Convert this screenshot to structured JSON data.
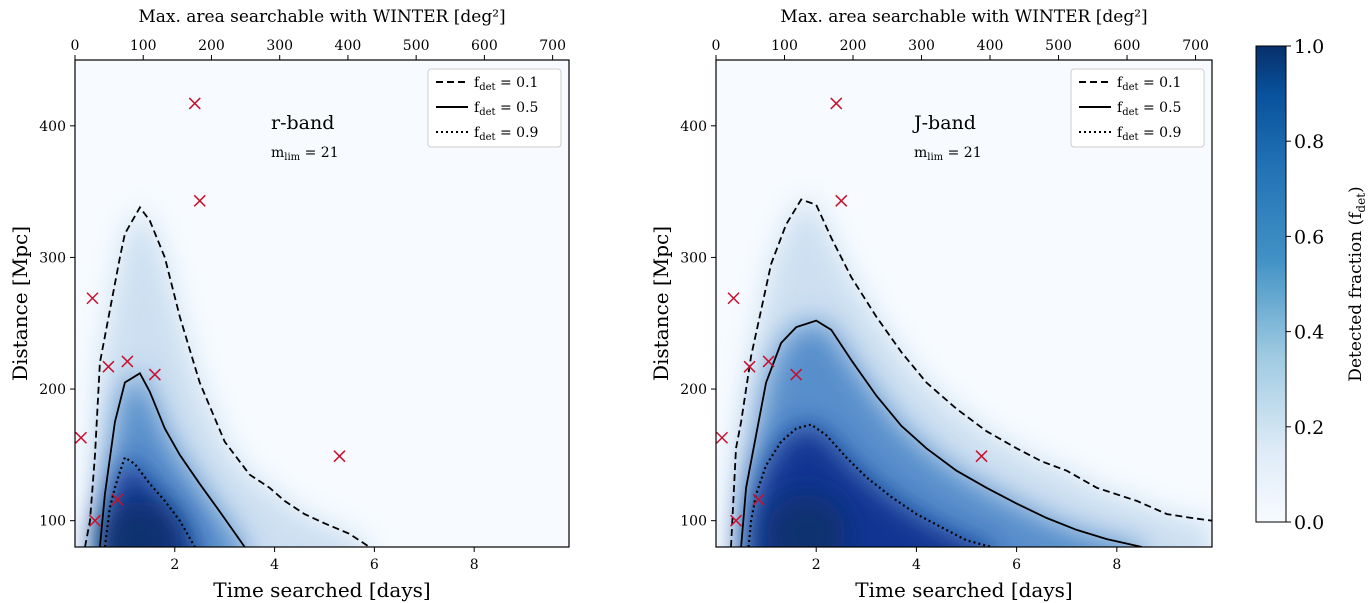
{
  "colormap": {
    "low": "#f7fbff",
    "mid": "#6baed6",
    "high": "#08306b"
  },
  "marker_color": "#c8102e",
  "chart_data": [
    {
      "type": "heatmap",
      "panel_label": "r-band",
      "panel_sublabel": "m_lim = 21",
      "xlabel": "Time searched [days]",
      "ylabel": "Distance [Mpc]",
      "top_xlabel": "Max. area searchable with WINTER [deg²]",
      "xlim": [
        0,
        9.9
      ],
      "ylim": [
        80,
        450
      ],
      "top_xlim": [
        0,
        724
      ],
      "xticks": [
        2,
        4,
        6,
        8
      ],
      "yticks": [
        100,
        200,
        300,
        400
      ],
      "top_xticks": [
        0,
        100,
        200,
        300,
        400,
        500,
        600,
        700
      ],
      "contours": [
        {
          "level": 0.1,
          "label": "f_det = 0.1",
          "style": "dashed",
          "x": [
            0.2,
            0.3,
            0.4,
            0.5,
            0.6,
            0.8,
            0.9,
            1.0,
            1.3,
            1.5,
            1.8,
            2.1,
            2.5,
            3.0,
            3.5,
            3.9,
            4.2,
            4.6,
            5.0,
            5.5,
            5.9
          ],
          "y": [
            80,
            100,
            150,
            220,
            240,
            280,
            300,
            318,
            338,
            328,
            300,
            255,
            205,
            160,
            135,
            125,
            115,
            105,
            98,
            90,
            80
          ]
        },
        {
          "level": 0.5,
          "label": "f_det = 0.5",
          "style": "solid",
          "x": [
            0.5,
            0.6,
            0.8,
            1.0,
            1.3,
            1.5,
            1.8,
            2.1,
            2.5,
            2.9,
            3.4
          ],
          "y": [
            80,
            120,
            175,
            205,
            212,
            198,
            170,
            150,
            128,
            107,
            80
          ]
        },
        {
          "level": 0.9,
          "label": "f_det = 0.9",
          "style": "dotted",
          "x": [
            0.6,
            0.65,
            0.7,
            0.8,
            0.9,
            1.0,
            1.2,
            1.5,
            1.8,
            2.1,
            2.4
          ],
          "y": [
            80,
            95,
            110,
            125,
            137,
            148,
            143,
            128,
            115,
            100,
            80
          ]
        }
      ],
      "density_peak": {
        "x": 1.3,
        "y": 85
      },
      "events": [
        {
          "x": 0.12,
          "y": 163
        },
        {
          "x": 0.35,
          "y": 269
        },
        {
          "x": 0.4,
          "y": 100
        },
        {
          "x": 0.67,
          "y": 217
        },
        {
          "x": 0.85,
          "y": 116
        },
        {
          "x": 1.05,
          "y": 221
        },
        {
          "x": 1.6,
          "y": 211
        },
        {
          "x": 2.4,
          "y": 417
        },
        {
          "x": 2.5,
          "y": 343
        },
        {
          "x": 5.3,
          "y": 149
        }
      ]
    },
    {
      "type": "heatmap",
      "panel_label": "J-band",
      "panel_sublabel": "m_lim = 21",
      "xlabel": "Time searched [days]",
      "ylabel": "Distance [Mpc]",
      "top_xlabel": "Max. area searchable with WINTER [deg²]",
      "xlim": [
        0,
        9.9
      ],
      "ylim": [
        80,
        450
      ],
      "top_xlim": [
        0,
        724
      ],
      "xticks": [
        2,
        4,
        6,
        8
      ],
      "yticks": [
        100,
        200,
        300,
        400
      ],
      "top_xticks": [
        0,
        100,
        200,
        300,
        400,
        500,
        600,
        700
      ],
      "contours": [
        {
          "level": 0.1,
          "label": "f_det = 0.1",
          "style": "dashed",
          "x": [
            0.3,
            0.4,
            0.5,
            0.7,
            0.9,
            1.1,
            1.4,
            1.7,
            2.0,
            2.3,
            2.7,
            3.2,
            3.7,
            4.2,
            4.8,
            5.4,
            6.0,
            6.5,
            7.0,
            7.6,
            8.4,
            9.0,
            9.5,
            9.9
          ],
          "y": [
            80,
            155,
            175,
            225,
            260,
            295,
            325,
            344,
            340,
            315,
            285,
            255,
            228,
            205,
            185,
            168,
            155,
            145,
            138,
            125,
            115,
            105,
            102,
            100
          ]
        },
        {
          "level": 0.5,
          "label": "f_det = 0.5",
          "style": "solid",
          "x": [
            0.5,
            0.6,
            0.8,
            1.0,
            1.3,
            1.6,
            2.0,
            2.3,
            2.7,
            3.2,
            3.7,
            4.2,
            4.8,
            5.4,
            6.0,
            6.6,
            7.2,
            7.8,
            8.5
          ],
          "y": [
            80,
            125,
            165,
            205,
            235,
            247,
            252,
            245,
            222,
            195,
            172,
            155,
            138,
            125,
            113,
            102,
            93,
            86,
            80
          ]
        },
        {
          "level": 0.9,
          "label": "f_det = 0.9",
          "style": "dotted",
          "x": [
            0.65,
            0.7,
            0.8,
            1.0,
            1.3,
            1.6,
            1.9,
            2.2,
            2.6,
            3.0,
            3.5,
            4.0,
            4.5,
            5.0,
            5.5
          ],
          "y": [
            80,
            100,
            120,
            142,
            160,
            170,
            173,
            165,
            148,
            133,
            118,
            105,
            95,
            85,
            80
          ]
        }
      ],
      "density_peak": {
        "x": 1.8,
        "y": 90
      },
      "events": [
        {
          "x": 0.12,
          "y": 163
        },
        {
          "x": 0.35,
          "y": 269
        },
        {
          "x": 0.4,
          "y": 100
        },
        {
          "x": 0.67,
          "y": 217
        },
        {
          "x": 0.85,
          "y": 116
        },
        {
          "x": 1.05,
          "y": 221
        },
        {
          "x": 1.6,
          "y": 211
        },
        {
          "x": 2.4,
          "y": 417
        },
        {
          "x": 2.5,
          "y": 343
        },
        {
          "x": 5.3,
          "y": 149
        }
      ]
    }
  ],
  "legend": {
    "placement": "top-right",
    "items": [
      {
        "sub": "det",
        "value": "= 0.1",
        "style": "dashed"
      },
      {
        "sub": "det",
        "value": "= 0.5",
        "style": "solid"
      },
      {
        "sub": "det",
        "value": "= 0.9",
        "style": "dotted"
      }
    ]
  },
  "colorbar": {
    "label": "Detected fraction (f",
    "label_sub": "det",
    "label_end": ")",
    "range": [
      0,
      1
    ],
    "ticks": [
      "0.0",
      "0.2",
      "0.4",
      "0.6",
      "0.8",
      "1.0"
    ]
  }
}
